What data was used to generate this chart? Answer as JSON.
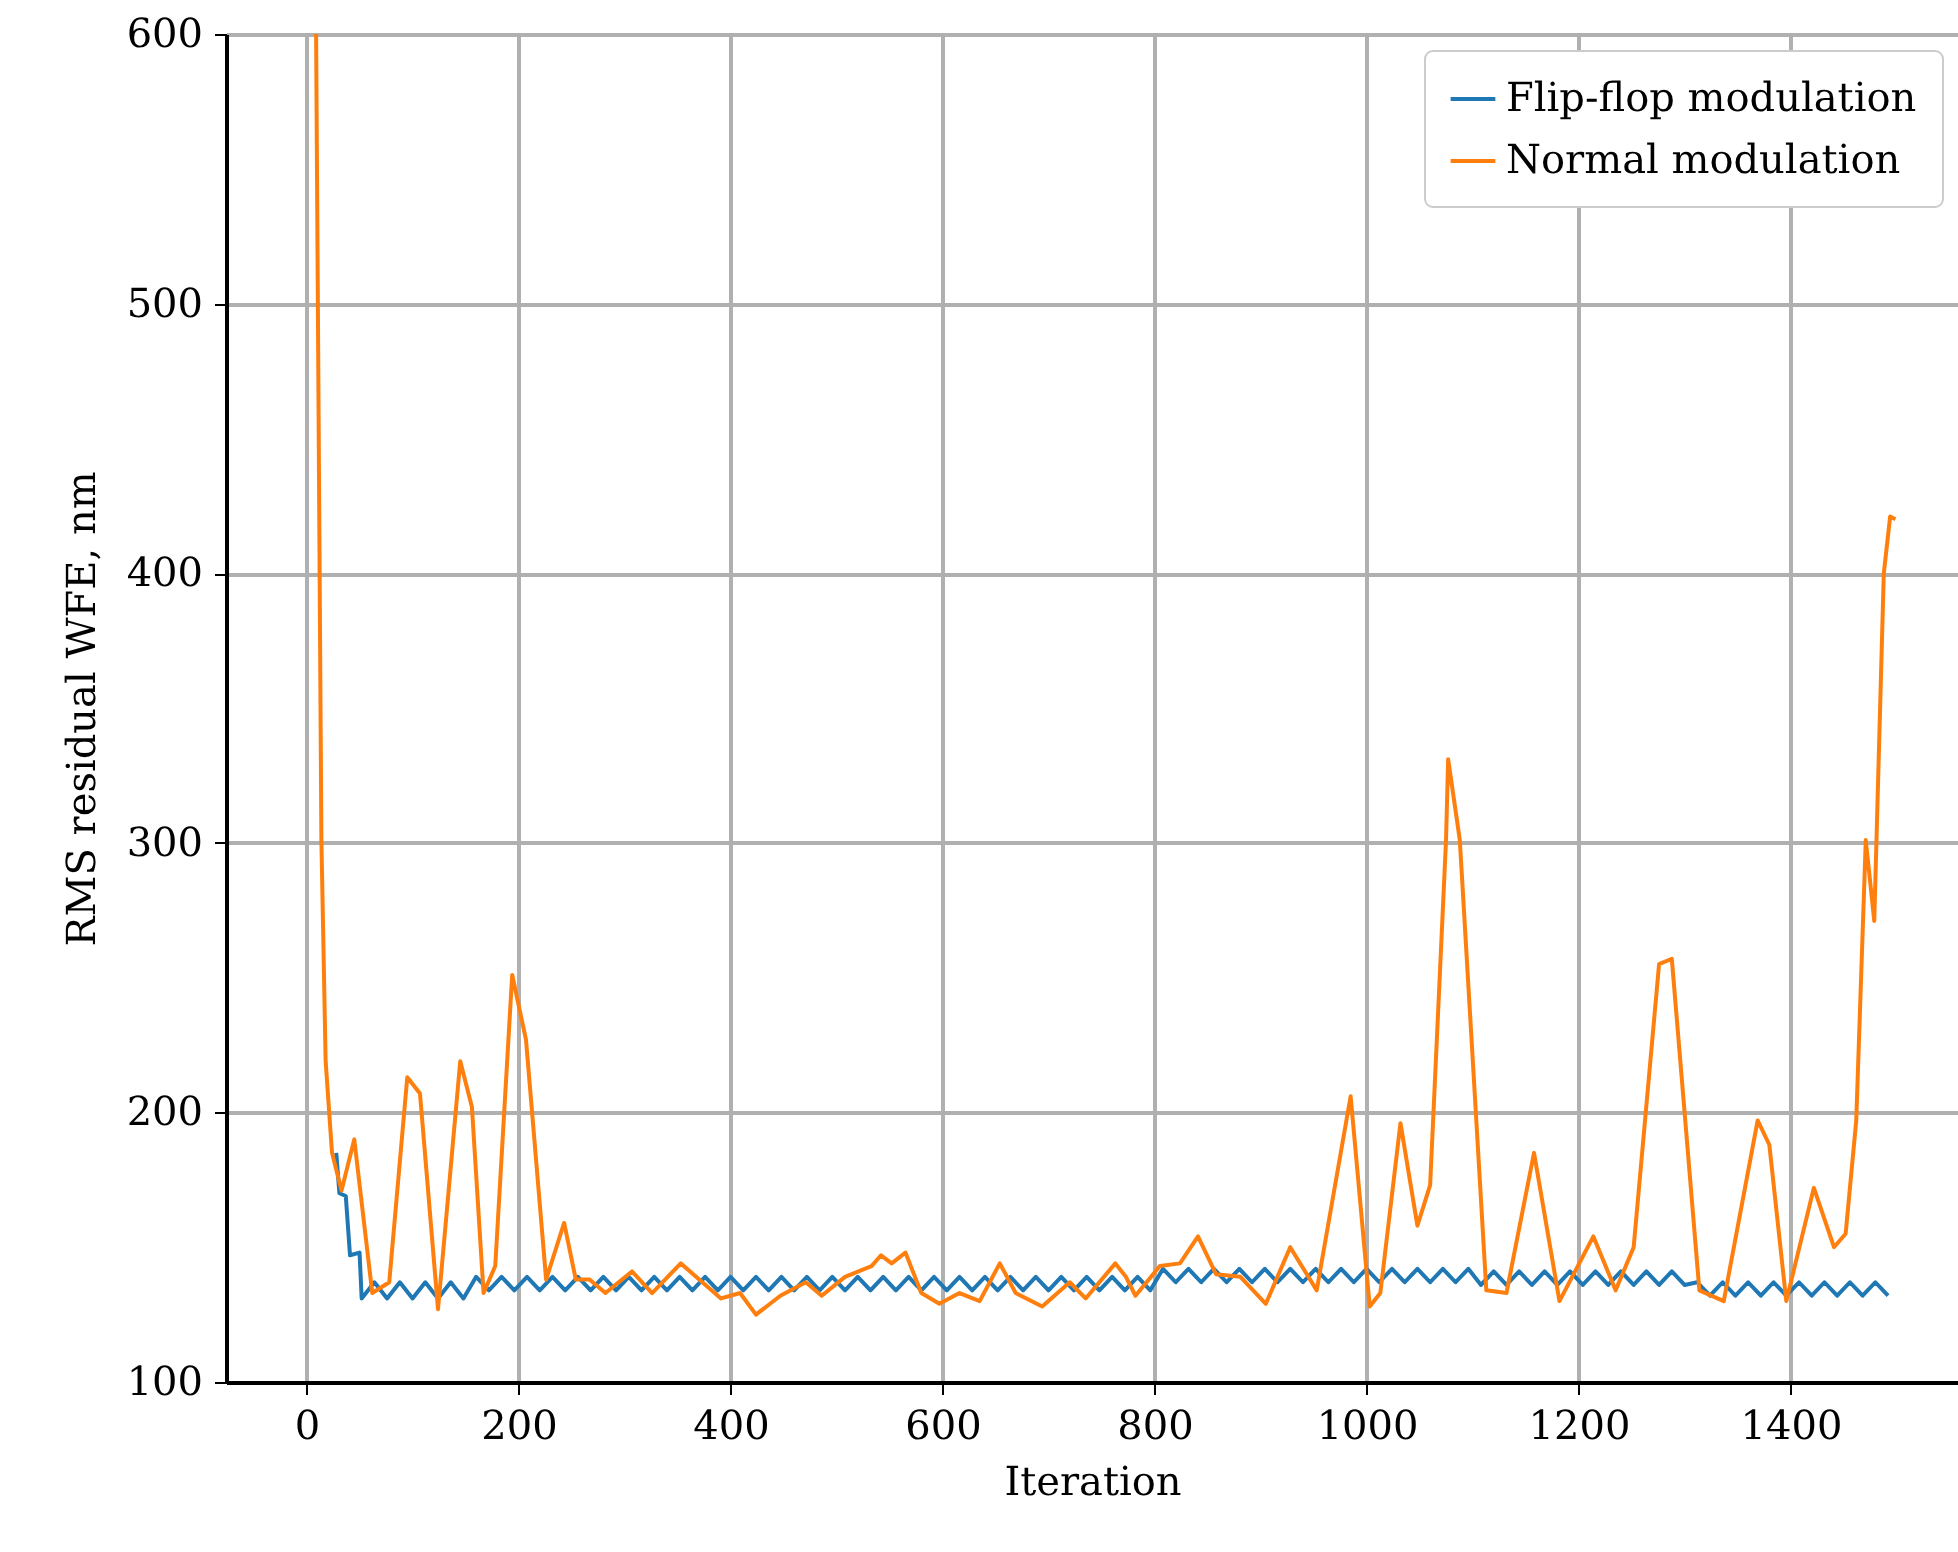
{
  "chart_data": {
    "type": "line",
    "xlabel": "Iteration",
    "ylabel": "RMS residual WFE, nm",
    "xlim": [
      -76,
      1558
    ],
    "ylim": [
      100,
      600
    ],
    "xticks": [
      0,
      200,
      400,
      600,
      800,
      1000,
      1200,
      1400
    ],
    "yticks": [
      100,
      200,
      300,
      400,
      500,
      600
    ],
    "grid": true,
    "legend": "top right",
    "line_style": "solid",
    "series": [
      {
        "name": "Flip-flop modulation",
        "color": "#1f77b4",
        "x": [
          28,
          31,
          37,
          41,
          50,
          52,
          64,
          76,
          88,
          100,
          112,
          124,
          136,
          148,
          160,
          172,
          184,
          196,
          208,
          220,
          232,
          244,
          256,
          268,
          280,
          292,
          304,
          316,
          328,
          340,
          352,
          364,
          376,
          388,
          400,
          412,
          424,
          436,
          448,
          460,
          472,
          484,
          496,
          508,
          520,
          532,
          544,
          556,
          568,
          580,
          592,
          604,
          616,
          628,
          640,
          652,
          664,
          676,
          688,
          700,
          712,
          724,
          736,
          748,
          760,
          772,
          784,
          796,
          808,
          820,
          832,
          844,
          856,
          868,
          880,
          892,
          904,
          916,
          928,
          940,
          952,
          964,
          976,
          988,
          1000,
          1012,
          1024,
          1036,
          1048,
          1060,
          1072,
          1084,
          1096,
          1108,
          1120,
          1132,
          1144,
          1156,
          1168,
          1180,
          1192,
          1204,
          1216,
          1228,
          1240,
          1252,
          1264,
          1276,
          1288,
          1300,
          1312,
          1324,
          1336,
          1348,
          1360,
          1372,
          1384,
          1396,
          1408,
          1420,
          1432,
          1444,
          1456,
          1468,
          1480,
          1492
        ],
        "values": [
          185,
          170,
          169,
          147,
          148,
          131,
          137,
          131,
          137,
          131,
          137,
          131,
          137,
          131,
          139,
          134,
          139,
          134,
          139,
          134,
          139,
          134,
          139,
          134,
          139,
          134,
          139,
          134,
          139,
          134,
          139,
          134,
          139,
          134,
          139,
          134,
          139,
          134,
          139,
          134,
          139,
          134,
          139,
          134,
          139,
          134,
          139,
          134,
          139,
          134,
          139,
          134,
          139,
          134,
          139,
          134,
          139,
          134,
          139,
          134,
          139,
          134,
          139,
          134,
          139,
          134,
          139,
          134,
          142,
          137,
          142,
          137,
          142,
          137,
          142,
          137,
          142,
          137,
          142,
          137,
          142,
          137,
          142,
          137,
          142,
          137,
          142,
          137,
          142,
          137,
          142,
          137,
          142,
          136,
          141,
          136,
          141,
          136,
          141,
          136,
          141,
          136,
          141,
          136,
          141,
          136,
          141,
          136,
          141,
          136,
          137,
          132,
          137,
          132,
          137,
          132,
          137,
          132,
          137,
          132,
          137,
          132,
          137,
          132,
          137,
          132
        ]
      },
      {
        "name": "Normal modulation",
        "color": "#ff7f0e",
        "x": [
          9,
          14,
          18,
          24,
          33,
          45,
          62,
          78,
          95,
          107,
          124,
          145,
          156,
          167,
          178,
          194,
          207,
          226,
          243,
          254,
          267,
          282,
          307,
          326,
          353,
          391,
          409,
          424,
          447,
          471,
          486,
          508,
          533,
          542,
          552,
          565,
          580,
          597,
          616,
          635,
          654,
          669,
          694,
          720,
          735,
          763,
          773,
          782,
          805,
          824,
          841,
          858,
          881,
          905,
          928,
          953,
          985,
          1003,
          1013,
          1032,
          1048,
          1060,
          1075,
          1077,
          1088,
          1113,
          1132,
          1158,
          1182,
          1214,
          1235,
          1252,
          1276,
          1288,
          1314,
          1337,
          1369,
          1380,
          1396,
          1422,
          1441,
          1452,
          1462,
          1471,
          1479,
          1488,
          1494,
          1499
        ],
        "values": [
          600,
          301,
          219,
          185,
          171,
          190,
          133,
          137,
          213,
          207,
          127,
          219,
          202,
          133,
          143,
          251,
          227,
          138,
          159,
          138,
          138,
          133,
          141,
          133,
          144,
          131,
          133,
          125,
          132,
          137,
          132,
          139,
          143,
          147,
          144,
          148,
          133,
          129,
          133,
          130,
          144,
          133,
          128,
          137,
          131,
          144,
          139,
          132,
          143,
          144,
          154,
          140,
          139,
          129,
          150,
          134,
          206,
          128,
          133,
          196,
          158,
          173,
          301,
          331,
          301,
          134,
          133,
          185,
          130,
          154,
          134,
          150,
          255,
          257,
          134,
          130,
          197,
          188,
          130,
          172,
          150,
          155,
          197,
          301,
          271,
          400,
          421,
          420
        ]
      }
    ]
  }
}
